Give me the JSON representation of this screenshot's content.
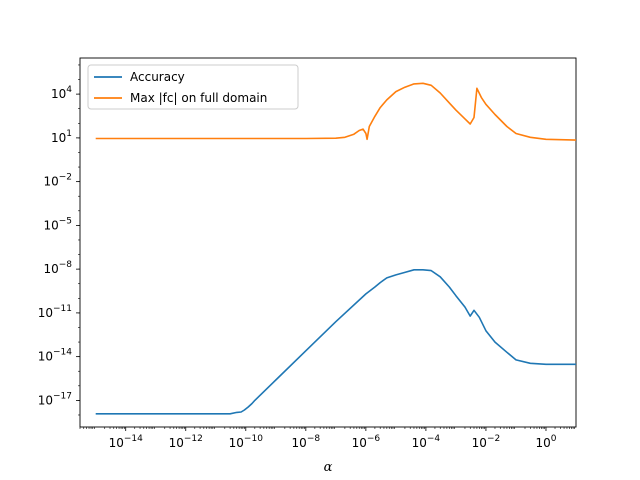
{
  "chart_data": {
    "type": "line",
    "title": "",
    "xlabel": "α",
    "ylabel": "",
    "xscale": "log",
    "yscale": "log",
    "xlim": [
      3e-16,
      10.0
    ],
    "ylim": [
      1.5e-19,
      3000000.0
    ],
    "grid": false,
    "legend_position": "top-left",
    "x_ticks": [
      {
        "value": 1e-14,
        "base": "10",
        "exp": "−14"
      },
      {
        "value": 1e-12,
        "base": "10",
        "exp": "−12"
      },
      {
        "value": 1e-10,
        "base": "10",
        "exp": "−10"
      },
      {
        "value": 1e-08,
        "base": "10",
        "exp": "−8"
      },
      {
        "value": 1e-06,
        "base": "10",
        "exp": "−6"
      },
      {
        "value": 0.0001,
        "base": "10",
        "exp": "−4"
      },
      {
        "value": 0.01,
        "base": "10",
        "exp": "−2"
      },
      {
        "value": 1,
        "base": "10",
        "exp": "0"
      }
    ],
    "y_ticks": [
      {
        "value": 1e-17,
        "base": "10",
        "exp": "−17"
      },
      {
        "value": 1e-14,
        "base": "10",
        "exp": "−14"
      },
      {
        "value": 1e-11,
        "base": "10",
        "exp": "−11"
      },
      {
        "value": 1e-08,
        "base": "10",
        "exp": "−8"
      },
      {
        "value": 1e-05,
        "base": "10",
        "exp": "−5"
      },
      {
        "value": 0.01,
        "base": "10",
        "exp": "−2"
      },
      {
        "value": 10,
        "base": "10",
        "exp": "1"
      },
      {
        "value": 10000.0,
        "base": "10",
        "exp": "4"
      }
    ],
    "series": [
      {
        "name": "Accuracy",
        "color": "#1f77b4",
        "points": [
          [
            1e-15,
            1.2e-18
          ],
          [
            1e-14,
            1.2e-18
          ],
          [
            1e-13,
            1.2e-18
          ],
          [
            1e-12,
            1.2e-18
          ],
          [
            1e-11,
            1.2e-18
          ],
          [
            3e-11,
            1.2e-18
          ],
          [
            5e-11,
            1.5e-18
          ],
          [
            7e-11,
            1.6e-18
          ],
          [
            9e-11,
            2.2e-18
          ],
          [
            1.2e-10,
            3.5e-18
          ],
          [
            1.6e-10,
            6e-18
          ],
          [
            2e-10,
            1e-17
          ],
          [
            1e-09,
            2.5e-16
          ],
          [
            1e-08,
            2.5e-14
          ],
          [
            1e-07,
            2.5e-12
          ],
          [
            1e-06,
            2e-10
          ],
          [
            2e-06,
            6e-10
          ],
          [
            3e-06,
            1.2e-09
          ],
          [
            5e-06,
            2.5e-09
          ],
          [
            1e-05,
            4e-09
          ],
          [
            2e-05,
            6e-09
          ],
          [
            4e-05,
            9e-09
          ],
          [
            8e-05,
            9e-09
          ],
          [
            0.00015,
            8e-09
          ],
          [
            0.0003,
            3e-09
          ],
          [
            0.0006,
            6e-10
          ],
          [
            0.001,
            1.5e-10
          ],
          [
            0.002,
            2.5e-11
          ],
          [
            0.003,
            6e-12
          ],
          [
            0.004,
            1.5e-11
          ],
          [
            0.006,
            5e-12
          ],
          [
            0.01,
            6e-13
          ],
          [
            0.02,
            1e-13
          ],
          [
            0.05,
            2e-14
          ],
          [
            0.1,
            6e-15
          ],
          [
            0.3,
            3.5e-15
          ],
          [
            1,
            3e-15
          ],
          [
            10,
            3e-15
          ]
        ]
      },
      {
        "name": "Max |fc| on full domain",
        "color": "#ff7f0e",
        "points": [
          [
            1e-15,
            9
          ],
          [
            1e-12,
            9
          ],
          [
            1e-09,
            9
          ],
          [
            1e-08,
            9
          ],
          [
            1e-07,
            9.5
          ],
          [
            2e-07,
            11
          ],
          [
            4e-07,
            18
          ],
          [
            6e-07,
            32
          ],
          [
            8e-07,
            40
          ],
          [
            1e-06,
            20
          ],
          [
            1.1e-06,
            8
          ],
          [
            1.3e-06,
            60
          ],
          [
            2e-06,
            300
          ],
          [
            3e-06,
            1200
          ],
          [
            5e-06,
            4000
          ],
          [
            1e-05,
            15000
          ],
          [
            2e-05,
            30000
          ],
          [
            4e-05,
            50000
          ],
          [
            8e-05,
            55000
          ],
          [
            0.00015,
            40000
          ],
          [
            0.0003,
            12000
          ],
          [
            0.0006,
            2500
          ],
          [
            0.001,
            800
          ],
          [
            0.002,
            200
          ],
          [
            0.003,
            90
          ],
          [
            0.004,
            250
          ],
          [
            0.005,
            25000
          ],
          [
            0.007,
            6000
          ],
          [
            0.01,
            2000
          ],
          [
            0.02,
            400
          ],
          [
            0.05,
            60
          ],
          [
            0.1,
            20
          ],
          [
            0.3,
            11
          ],
          [
            1,
            8
          ],
          [
            10,
            7
          ]
        ]
      }
    ]
  }
}
